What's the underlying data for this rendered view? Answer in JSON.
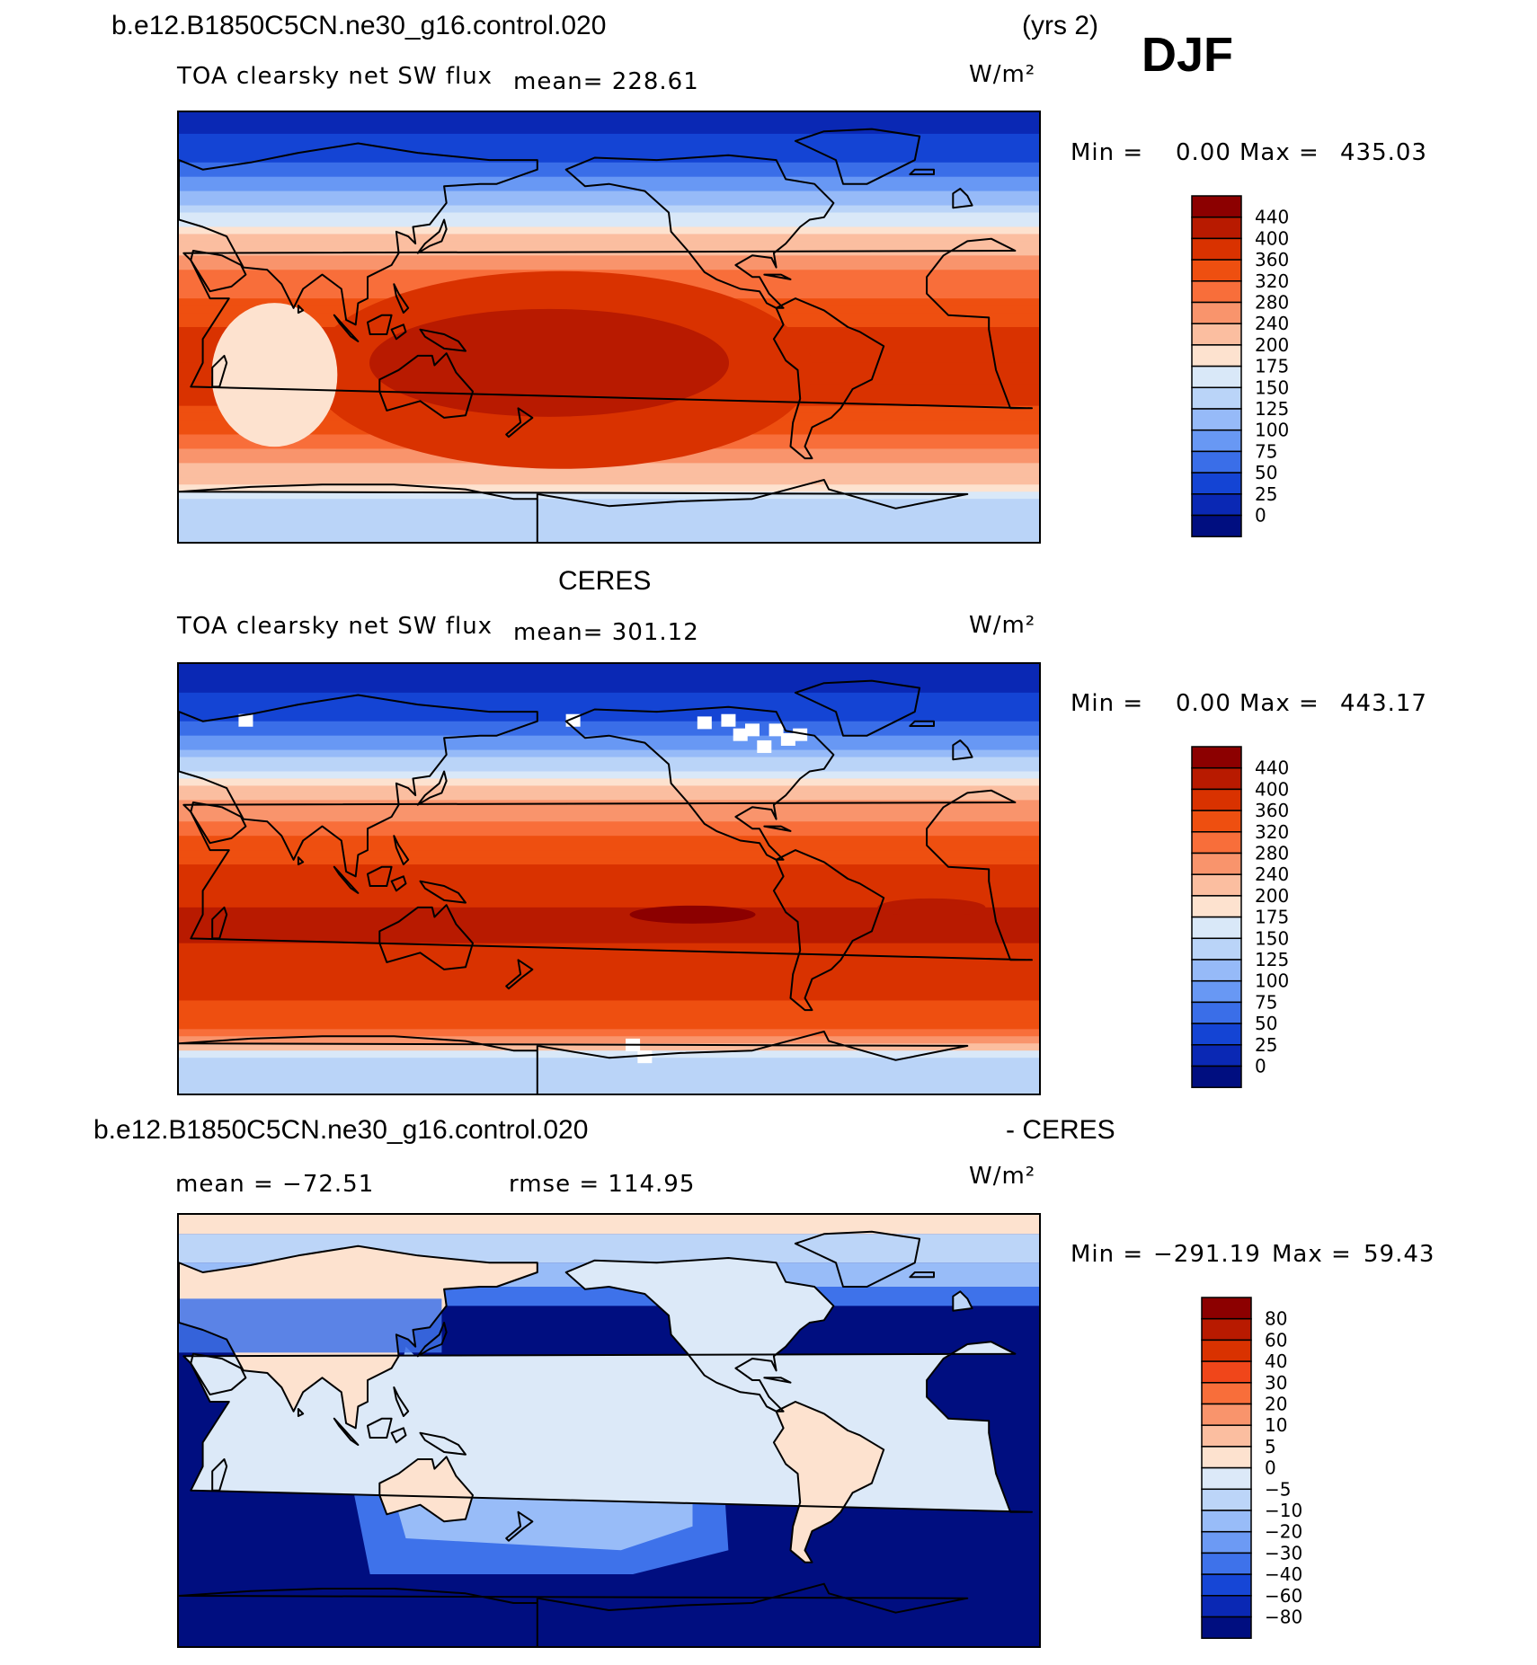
{
  "header": {
    "case_top": "b.e12.B1850C5CN.ne30_g16.control.020",
    "years": "(yrs 2)",
    "season": "DJF"
  },
  "panel1": {
    "title": "TOA clearsky net SW flux",
    "mean": "mean=  228.61",
    "units": "W/m²",
    "min_label": "Min =",
    "min_value": "0.00",
    "max_label": "Max =",
    "max_value": "435.03"
  },
  "panel2": {
    "header": "CERES",
    "title": "TOA clearsky net SW flux",
    "mean": "mean=  301.12",
    "units": "W/m²",
    "min_label": "Min =",
    "min_value": "0.00",
    "max_label": "Max =",
    "max_value": "443.17"
  },
  "panel3": {
    "case": "b.e12.B1850C5CN.ne30_g16.control.020",
    "minus": "- CERES",
    "mean": "mean  =  −72.51",
    "rmse": "rmse  =  114.95",
    "units": "W/m²",
    "min_label": "Min =",
    "min_value": "−291.19",
    "max_label": "Max =",
    "max_value": "59.43"
  },
  "chart_data": [
    {
      "type": "heatmap",
      "title": "TOA clearsky net SW flux",
      "units": "W/m²",
      "min": 0.0,
      "max": 435.03,
      "mean": 228.61,
      "colorbar_levels": [
        "440",
        "400",
        "360",
        "320",
        "280",
        "240",
        "200",
        "175",
        "150",
        "125",
        "100",
        "75",
        "50",
        "25",
        "0"
      ],
      "colorbar_colors": [
        "#8c0000",
        "#b81a00",
        "#d93200",
        "#ee4f10",
        "#f86e3a",
        "#f9946c",
        "#fbbea0",
        "#fde2cf",
        "#d9e8f8",
        "#bad4f8",
        "#96baf8",
        "#6898f4",
        "#3a6ee8",
        "#1444d4",
        "#0a28b4",
        "#000e80"
      ],
      "zonal_profile": [
        {
          "lat": 90,
          "value": 10
        },
        {
          "lat": 70,
          "value": 40
        },
        {
          "lat": 55,
          "value": 110
        },
        {
          "lat": 40,
          "value": 190
        },
        {
          "lat": 20,
          "value": 300
        },
        {
          "lat": 0,
          "value": 360
        },
        {
          "lat": -20,
          "value": 400
        },
        {
          "lat": -40,
          "value": 340
        },
        {
          "lat": -60,
          "value": 230
        },
        {
          "lat": -75,
          "value": 130
        },
        {
          "lat": -90,
          "value": 140
        }
      ]
    },
    {
      "type": "heatmap",
      "title": "TOA clearsky net SW flux",
      "subtitle": "CERES",
      "units": "W/m²",
      "min": 0.0,
      "max": 443.17,
      "mean": 301.12,
      "colorbar_levels": [
        "440",
        "400",
        "360",
        "320",
        "280",
        "240",
        "200",
        "175",
        "150",
        "125",
        "100",
        "75",
        "50",
        "25",
        "0"
      ],
      "colorbar_colors": [
        "#8c0000",
        "#b81a00",
        "#d93200",
        "#ee4f10",
        "#f86e3a",
        "#f9946c",
        "#fbbea0",
        "#fde2cf",
        "#d9e8f8",
        "#bad4f8",
        "#96baf8",
        "#6898f4",
        "#3a6ee8",
        "#1444d4",
        "#0a28b4",
        "#000e80"
      ],
      "zonal_profile": [
        {
          "lat": 90,
          "value": 5
        },
        {
          "lat": 70,
          "value": 40
        },
        {
          "lat": 55,
          "value": 90
        },
        {
          "lat": 40,
          "value": 190
        },
        {
          "lat": 20,
          "value": 310
        },
        {
          "lat": 0,
          "value": 380
        },
        {
          "lat": -20,
          "value": 410
        },
        {
          "lat": -40,
          "value": 380
        },
        {
          "lat": -60,
          "value": 340
        },
        {
          "lat": -75,
          "value": 140
        },
        {
          "lat": -90,
          "value": 140
        }
      ]
    },
    {
      "type": "heatmap",
      "title": "b.e12.B1850C5CN.ne30_g16.control.020 - CERES",
      "units": "W/m²",
      "min": -291.19,
      "max": 59.43,
      "mean": -72.51,
      "rmse": 114.95,
      "colorbar_levels": [
        "80",
        "60",
        "40",
        "30",
        "20",
        "10",
        "5",
        "0",
        "−5",
        "−10",
        "−20",
        "−30",
        "−40",
        "−60",
        "−80"
      ],
      "colorbar_colors": [
        "#8c0000",
        "#b81a00",
        "#d93200",
        "#f0461a",
        "#f86e3a",
        "#f9946c",
        "#fbbea0",
        "#fde2cf",
        "#dce9f8",
        "#bcd5f8",
        "#98bcf8",
        "#6c9af4",
        "#3e72ea",
        "#1646d6",
        "#0a28b4",
        "#000e80"
      ]
    }
  ]
}
